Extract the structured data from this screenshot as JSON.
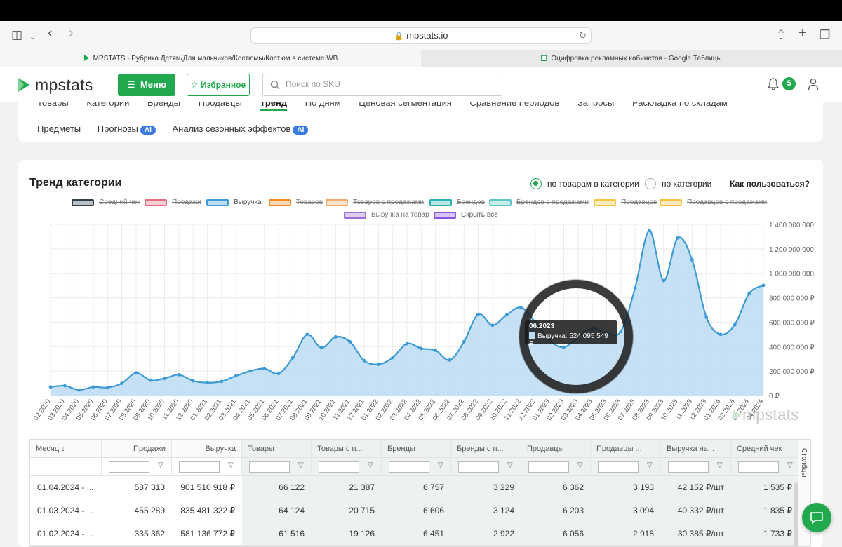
{
  "browser": {
    "url": "mpstats.io",
    "tabs": [
      {
        "label": "MPSTATS - Рубрика Детям/Для мальчиков/Костюмы/Костюм в системе WB",
        "active": true
      },
      {
        "label": "Оцифровка рекламных кабинетов - Google Таблицы",
        "active": false
      }
    ]
  },
  "header": {
    "logo": "mpstats",
    "menu_label": "Меню",
    "favorites_label": "Избранное",
    "search_placeholder": "Поиск по SKU",
    "notifications_count": "5"
  },
  "nav": {
    "row1": [
      "Товары",
      "Категории",
      "Бренды",
      "Продавцы",
      "Тренд",
      "По дням",
      "Ценовая сегментация",
      "Сравнение периодов",
      "Запросы",
      "Раскладка по складам"
    ],
    "active": "Тренд",
    "row2": [
      {
        "label": "Предметы",
        "ai": false
      },
      {
        "label": "Прогнозы",
        "ai": true
      },
      {
        "label": "Анализ сезонных эффектов",
        "ai": true
      }
    ],
    "ai_badge": "AI"
  },
  "chart_card": {
    "title": "Тренд категории",
    "radio_options": [
      {
        "label": "по товарам в категории",
        "selected": true
      },
      {
        "label": "по категории",
        "selected": false
      }
    ],
    "howto": "Как пользоваться?",
    "legend": [
      {
        "label": "Средний чек",
        "color": "#2f3e4a",
        "active": false
      },
      {
        "label": "Продажи",
        "color": "#e56b80",
        "active": false
      },
      {
        "label": "Выручка",
        "color": "#3c9ad6",
        "active": true
      },
      {
        "label": "Товаров",
        "color": "#f08a2a",
        "active": false
      },
      {
        "label": "Товаров с продажами",
        "color": "#f4a86a",
        "active": false
      },
      {
        "label": "Брендов",
        "color": "#2bb3b1",
        "active": false
      },
      {
        "label": "Брендов с продажами",
        "color": "#5cc9c5",
        "active": false
      },
      {
        "label": "Продавцов",
        "color": "#f5c542",
        "active": false
      },
      {
        "label": "Продавцов с продажами",
        "color": "#f3c040",
        "active": false
      },
      {
        "label": "Выручка на товар",
        "color": "#9b6fd6",
        "active": false
      },
      {
        "label": "Скрыть все",
        "color": "#8a55e0",
        "active": true
      }
    ],
    "tooltip": {
      "title": "06.2023",
      "text": "Выручка: 524 095 549 ₽"
    },
    "watermark": "mpstats"
  },
  "chart_data": {
    "type": "area",
    "series": [
      {
        "name": "Выручка",
        "color": "#3c9ad6"
      }
    ],
    "x": [
      "02.2020",
      "03.2020",
      "04.2020",
      "05.2020",
      "06.2020",
      "07.2020",
      "08.2020",
      "09.2020",
      "10.2020",
      "11.2020",
      "12.2020",
      "01.2021",
      "02.2021",
      "03.2021",
      "04.2021",
      "05.2021",
      "06.2021",
      "07.2021",
      "08.2021",
      "09.2021",
      "10.2021",
      "11.2021",
      "12.2021",
      "01.2022",
      "02.2022",
      "03.2022",
      "04.2022",
      "05.2022",
      "06.2022",
      "07.2022",
      "08.2022",
      "09.2022",
      "10.2022",
      "11.2022",
      "12.2022",
      "01.2023",
      "02.2023",
      "03.2023",
      "04.2023",
      "05.2023",
      "06.2023",
      "07.2023",
      "08.2023",
      "09.2023",
      "10.2023",
      "11.2023",
      "12.2023",
      "01.2024",
      "02.2024",
      "03.2024",
      "04.2024"
    ],
    "values": [
      70000000,
      80000000,
      45000000,
      70000000,
      65000000,
      100000000,
      185000000,
      125000000,
      140000000,
      170000000,
      120000000,
      105000000,
      115000000,
      160000000,
      200000000,
      220000000,
      180000000,
      310000000,
      500000000,
      390000000,
      480000000,
      440000000,
      285000000,
      255000000,
      310000000,
      425000000,
      385000000,
      370000000,
      290000000,
      440000000,
      665000000,
      575000000,
      660000000,
      720000000,
      600000000,
      450000000,
      395000000,
      480000000,
      550000000,
      510000000,
      524095549,
      880000000,
      1350000000,
      940000000,
      1290000000,
      1110000000,
      640000000,
      500000000,
      580000000,
      835481322,
      901510918
    ],
    "ylim": [
      0,
      1400000000
    ],
    "y_ticks": [
      "0 ₽",
      "200 000 000 ₽",
      "400 000 000 ₽",
      "600 000 000 ₽",
      "800 000 000 ₽",
      "1 000 000 000",
      "1 200 000 000",
      "1 400 000 000"
    ],
    "y_axis": "right",
    "grid": true
  },
  "table": {
    "columns": [
      "Месяц",
      "Продажи",
      "Выручка",
      "Товары",
      "Товары с п...",
      "Бренды",
      "Бренды с п...",
      "Продавцы",
      "Продавцы ...",
      "Выручка на...",
      "Средний чек"
    ],
    "rows": [
      [
        "01.04.2024 - ...",
        "587 313",
        "901 510 918 ₽",
        "66 122",
        "21 387",
        "6 757",
        "3 229",
        "6 362",
        "3 193",
        "42 152 ₽/шт",
        "1 535 ₽"
      ],
      [
        "01.03.2024 - ...",
        "455 289",
        "835 481 322 ₽",
        "64 124",
        "20 715",
        "6 606",
        "3 124",
        "6 203",
        "3 094",
        "40 332 ₽/шт",
        "1 835 ₽"
      ],
      [
        "01.02.2024 - ...",
        "335 362",
        "581 136 772 ₽",
        "61 516",
        "19 126",
        "6 451",
        "2 922",
        "6 056",
        "2 918",
        "30 385 ₽/шт",
        "1 733 ₽"
      ]
    ],
    "side_tab": "Столбцы"
  }
}
